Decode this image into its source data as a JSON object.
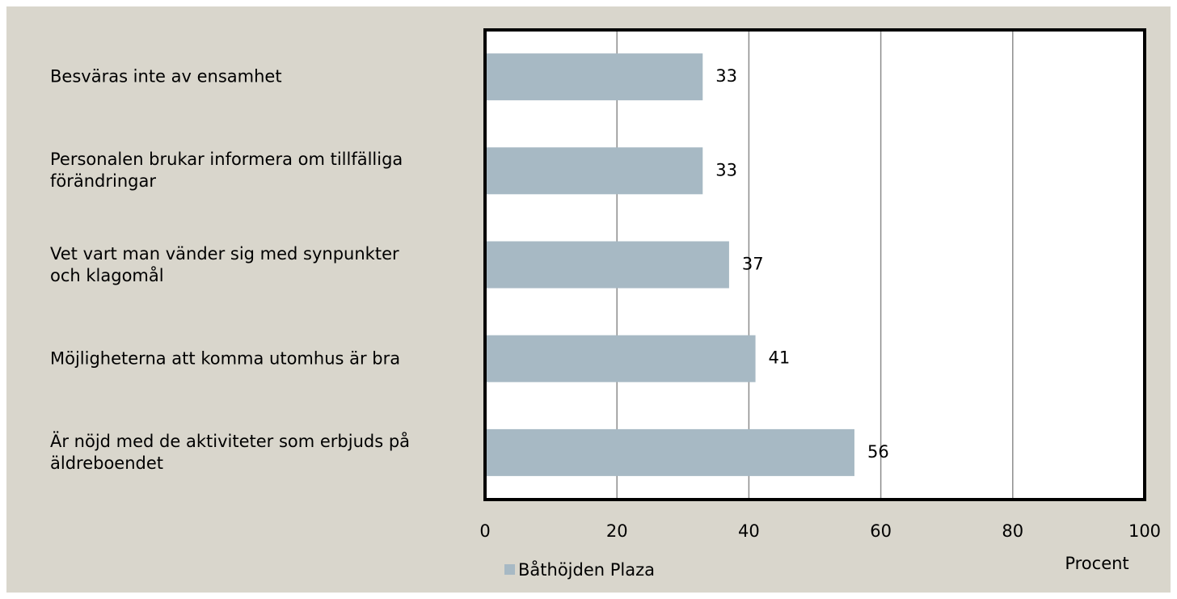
{
  "chart_data": {
    "type": "bar",
    "orientation": "horizontal",
    "categories": [
      "Besväras inte av ensamhet",
      "Personalen brukar informera om tillfälliga förändringar",
      "Vet vart man vänder sig med synpunkter och klagomål",
      "Möjligheterna att komma utomhus är bra",
      "Är nöjd med de aktiviteter som erbjuds på äldreboendet"
    ],
    "series": [
      {
        "name": "Båthöjden Plaza",
        "color": "#a7b9c4",
        "values": [
          33,
          33,
          37,
          41,
          56
        ]
      }
    ],
    "xlim": [
      0,
      100
    ],
    "xticks": [
      0,
      20,
      40,
      60,
      80,
      100
    ],
    "x_label": "Procent",
    "grid": true
  }
}
